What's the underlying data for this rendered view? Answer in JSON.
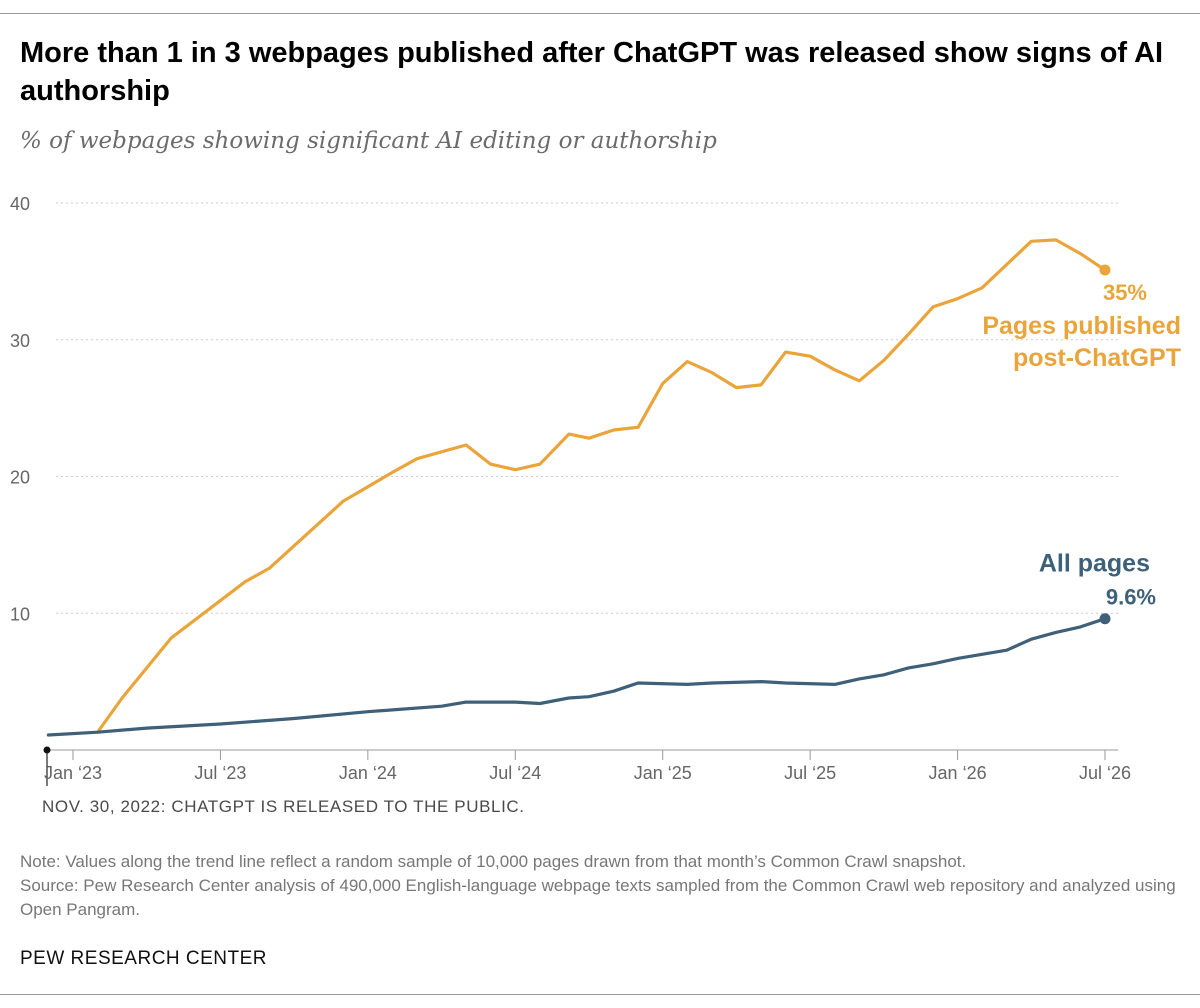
{
  "header": {
    "title": "More than 1 in 3 webpages published after ChatGPT was released show signs of AI authorship",
    "subtitle": "% of webpages showing significant AI editing or authorship"
  },
  "event_note": "NOV. 30, 2022: CHATGPT IS RELEASED TO THE PUBLIC.",
  "note": {
    "line1": "Note: Values along the trend line reflect a random sample of 10,000 pages drawn from that month’s Common Crawl snapshot.",
    "line2": "Source: Pew Research Center analysis of 490,000 English-language webpage texts sampled from the Common Crawl web repository and analyzed using Open Pangram."
  },
  "brand": "PEW RESEARCH CENTER",
  "colors": {
    "post_chatgpt": "#E9A43B",
    "all_pages": "#3E6079",
    "grid": "#cccccc",
    "axis": "#999999",
    "tick_text": "#666666"
  },
  "chart_data": {
    "type": "line",
    "title": "More than 1 in 3 webpages published after ChatGPT was released show signs of AI authorship",
    "ylabel": "% of webpages showing significant AI editing or authorship",
    "ylim": [
      0,
      40
    ],
    "yticks": [
      10,
      20,
      30,
      40
    ],
    "xlim": [
      "2022-11",
      "2026-08"
    ],
    "xticks": [
      {
        "date": "2023-01",
        "label": "Jan ‘23"
      },
      {
        "date": "2023-07",
        "label": "Jul ‘23"
      },
      {
        "date": "2024-01",
        "label": "Jan ‘24"
      },
      {
        "date": "2024-07",
        "label": "Jul ‘24"
      },
      {
        "date": "2025-01",
        "label": "Jan ‘25"
      },
      {
        "date": "2025-07",
        "label": "Jul ‘25"
      },
      {
        "date": "2026-01",
        "label": "Jan ‘26"
      },
      {
        "date": "2026-07",
        "label": "Jul ‘26"
      }
    ],
    "grid": true,
    "annotation": {
      "date": "2022-11",
      "text": "NOV. 30, 2022: CHATGPT IS RELEASED TO THE PUBLIC."
    },
    "series": [
      {
        "name": "Pages published post-ChatGPT",
        "label_lines": [
          "Pages published",
          "post-ChatGPT"
        ],
        "end_label": "35%",
        "color": "#E9A43B",
        "points": [
          {
            "x": "2023-02",
            "y": 1.3
          },
          {
            "x": "2023-03",
            "y": 3.8
          },
          {
            "x": "2023-05",
            "y": 8.2
          },
          {
            "x": "2023-08",
            "y": 12.3
          },
          {
            "x": "2023-09",
            "y": 13.3
          },
          {
            "x": "2023-12",
            "y": 18.2
          },
          {
            "x": "2024-02",
            "y": 20.3
          },
          {
            "x": "2024-03",
            "y": 21.3
          },
          {
            "x": "2024-05",
            "y": 22.3
          },
          {
            "x": "2024-06",
            "y": 20.9
          },
          {
            "x": "2024-07",
            "y": 20.5
          },
          {
            "x": "2024-08",
            "y": 20.9
          },
          {
            "x": "2024-08",
            "y": 23.1
          },
          {
            "x": "2024-10",
            "y": 22.8
          },
          {
            "x": "2024-11",
            "y": 23.4
          },
          {
            "x": "2024-12",
            "y": 23.6
          },
          {
            "x": "2025-01",
            "y": 26.8
          },
          {
            "x": "2025-02",
            "y": 28.4
          },
          {
            "x": "2025-03",
            "y": 27.6
          },
          {
            "x": "2025-04",
            "y": 26.5
          },
          {
            "x": "2025-05",
            "y": 26.7
          },
          {
            "x": "2025-06",
            "y": 29.1
          },
          {
            "x": "2025-07",
            "y": 28.8
          },
          {
            "x": "2025-08",
            "y": 27.8
          },
          {
            "x": "2025-09",
            "y": 27.0
          },
          {
            "x": "2025-10",
            "y": 28.5
          },
          {
            "x": "2025-11",
            "y": 30.4
          },
          {
            "x": "2025-12",
            "y": 32.4
          },
          {
            "x": "2026-01",
            "y": 33.0
          },
          {
            "x": "2026-02",
            "y": 33.8
          },
          {
            "x": "2026-03",
            "y": 35.5
          },
          {
            "x": "2026-04",
            "y": 37.2
          },
          {
            "x": "2026-05",
            "y": 37.3
          },
          {
            "x": "2026-06",
            "y": 36.3
          },
          {
            "x": "2026-07",
            "y": 35.1
          }
        ]
      },
      {
        "name": "All pages",
        "label_lines": [
          "All pages"
        ],
        "end_label": "9.6%",
        "color": "#3E6079",
        "points": [
          {
            "x": "2022-12",
            "y": 1.1
          },
          {
            "x": "2023-02",
            "y": 1.3
          },
          {
            "x": "2023-04",
            "y": 1.6
          },
          {
            "x": "2023-07",
            "y": 1.9
          },
          {
            "x": "2023-10",
            "y": 2.3
          },
          {
            "x": "2024-01",
            "y": 2.8
          },
          {
            "x": "2024-04",
            "y": 3.2
          },
          {
            "x": "2024-05",
            "y": 3.5
          },
          {
            "x": "2024-07",
            "y": 3.5
          },
          {
            "x": "2024-08",
            "y": 3.4
          },
          {
            "x": "2024-08",
            "y": 3.8
          },
          {
            "x": "2024-10",
            "y": 3.9
          },
          {
            "x": "2024-11",
            "y": 4.3
          },
          {
            "x": "2024-12",
            "y": 4.9
          },
          {
            "x": "2025-02",
            "y": 4.8
          },
          {
            "x": "2025-03",
            "y": 4.9
          },
          {
            "x": "2025-05",
            "y": 5.0
          },
          {
            "x": "2025-06",
            "y": 4.9
          },
          {
            "x": "2025-08",
            "y": 4.8
          },
          {
            "x": "2025-09",
            "y": 5.2
          },
          {
            "x": "2025-10",
            "y": 5.5
          },
          {
            "x": "2025-11",
            "y": 6.0
          },
          {
            "x": "2025-12",
            "y": 6.3
          },
          {
            "x": "2026-01",
            "y": 6.7
          },
          {
            "x": "2026-02",
            "y": 7.0
          },
          {
            "x": "2026-03",
            "y": 7.3
          },
          {
            "x": "2026-04",
            "y": 8.1
          },
          {
            "x": "2026-05",
            "y": 8.6
          },
          {
            "x": "2026-06",
            "y": 9.0
          },
          {
            "x": "2026-07",
            "y": 9.6
          }
        ]
      }
    ]
  }
}
